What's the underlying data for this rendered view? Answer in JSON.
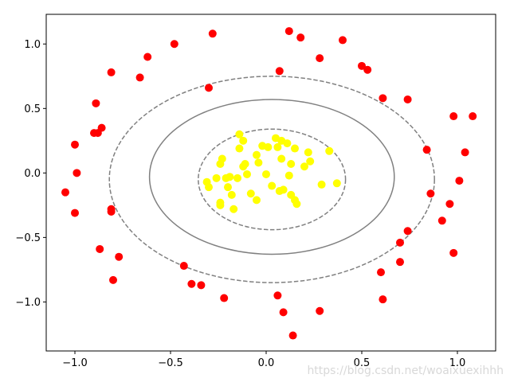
{
  "chart_data": {
    "type": "scatter",
    "title": "",
    "xlabel": "",
    "ylabel": "",
    "xlim": [
      -1.15,
      1.2
    ],
    "ylim": [
      -1.38,
      1.23
    ],
    "xticks": [
      -1.0,
      -0.5,
      0.0,
      0.5,
      1.0
    ],
    "xtick_labels": [
      "−1.0",
      "−0.5",
      "0.0",
      "0.5",
      "1.0"
    ],
    "yticks": [
      1.0,
      0.5,
      0.0,
      -0.5,
      -1.0
    ],
    "ytick_labels": [
      "1.0",
      "0.5",
      "0.0",
      "−0.5",
      "−1.0"
    ],
    "grid": false,
    "series": [
      {
        "color": "#ff0000",
        "points": [
          [
            -0.28,
            1.08
          ],
          [
            -0.48,
            1.0
          ],
          [
            -0.62,
            0.9
          ],
          [
            -0.81,
            0.78
          ],
          [
            -0.66,
            0.74
          ],
          [
            -0.3,
            0.66
          ],
          [
            -0.89,
            0.54
          ],
          [
            -0.86,
            0.35
          ],
          [
            -0.88,
            0.31
          ],
          [
            -0.9,
            0.31
          ],
          [
            -1.0,
            0.22
          ],
          [
            -0.99,
            0.0
          ],
          [
            -1.05,
            -0.15
          ],
          [
            -0.81,
            -0.28
          ],
          [
            -0.81,
            -0.3
          ],
          [
            -1.0,
            -0.31
          ],
          [
            -0.87,
            -0.59
          ],
          [
            -0.77,
            -0.65
          ],
          [
            -0.8,
            -0.83
          ],
          [
            -0.43,
            -0.72
          ],
          [
            -0.39,
            -0.86
          ],
          [
            -0.34,
            -0.87
          ],
          [
            -0.22,
            -0.97
          ],
          [
            0.12,
            1.1
          ],
          [
            0.18,
            1.05
          ],
          [
            0.28,
            0.89
          ],
          [
            0.4,
            1.03
          ],
          [
            0.07,
            0.79
          ],
          [
            0.5,
            0.83
          ],
          [
            0.53,
            0.8
          ],
          [
            0.61,
            0.58
          ],
          [
            0.74,
            0.57
          ],
          [
            0.98,
            0.44
          ],
          [
            1.08,
            0.44
          ],
          [
            0.84,
            0.18
          ],
          [
            1.04,
            0.16
          ],
          [
            1.01,
            -0.06
          ],
          [
            0.86,
            -0.16
          ],
          [
            0.96,
            -0.24
          ],
          [
            0.92,
            -0.37
          ],
          [
            0.74,
            -0.45
          ],
          [
            0.7,
            -0.54
          ],
          [
            0.98,
            -0.62
          ],
          [
            0.7,
            -0.69
          ],
          [
            0.6,
            -0.77
          ],
          [
            0.61,
            -0.98
          ],
          [
            0.06,
            -0.95
          ],
          [
            0.09,
            -1.08
          ],
          [
            0.28,
            -1.07
          ],
          [
            0.14,
            -1.26
          ]
        ]
      },
      {
        "color": "#ffff00",
        "points": [
          [
            -0.14,
            0.3
          ],
          [
            -0.12,
            0.25
          ],
          [
            -0.14,
            0.19
          ],
          [
            0.05,
            0.27
          ],
          [
            0.08,
            0.25
          ],
          [
            0.11,
            0.23
          ],
          [
            0.15,
            0.19
          ],
          [
            0.06,
            0.2
          ],
          [
            -0.02,
            0.21
          ],
          [
            0.01,
            0.2
          ],
          [
            0.22,
            0.16
          ],
          [
            0.33,
            0.17
          ],
          [
            -0.05,
            0.14
          ],
          [
            -0.23,
            0.11
          ],
          [
            -0.24,
            0.07
          ],
          [
            -0.11,
            0.07
          ],
          [
            -0.12,
            0.05
          ],
          [
            0.08,
            0.11
          ],
          [
            -0.04,
            0.08
          ],
          [
            0.13,
            0.07
          ],
          [
            0.23,
            0.09
          ],
          [
            0.2,
            0.05
          ],
          [
            -0.1,
            -0.01
          ],
          [
            0.0,
            -0.01
          ],
          [
            0.12,
            -0.02
          ],
          [
            -0.26,
            -0.04
          ],
          [
            -0.21,
            -0.04
          ],
          [
            -0.19,
            -0.03
          ],
          [
            -0.15,
            -0.04
          ],
          [
            -0.31,
            -0.07
          ],
          [
            -0.3,
            -0.11
          ],
          [
            -0.2,
            -0.11
          ],
          [
            0.03,
            -0.1
          ],
          [
            0.07,
            -0.14
          ],
          [
            0.09,
            -0.13
          ],
          [
            -0.08,
            -0.16
          ],
          [
            0.13,
            -0.17
          ],
          [
            -0.18,
            -0.17
          ],
          [
            0.15,
            -0.21
          ],
          [
            0.16,
            -0.24
          ],
          [
            -0.05,
            -0.21
          ],
          [
            -0.24,
            -0.23
          ],
          [
            -0.24,
            -0.25
          ],
          [
            -0.17,
            -0.28
          ],
          [
            0.29,
            -0.09
          ],
          [
            0.37,
            -0.08
          ]
        ]
      }
    ],
    "contours": [
      {
        "cx": 0.03,
        "cy": -0.05,
        "rx": 0.385,
        "ry": 0.39,
        "style": "dashed",
        "color": "#808080"
      },
      {
        "cx": 0.03,
        "cy": -0.03,
        "rx": 0.64,
        "ry": 0.6,
        "style": "solid",
        "color": "#808080"
      },
      {
        "cx": 0.03,
        "cy": -0.05,
        "rx": 0.85,
        "ry": 0.8,
        "style": "dashed",
        "color": "#808080"
      }
    ]
  },
  "watermark": "https://blog.csdn.net/woaixuexihhh"
}
